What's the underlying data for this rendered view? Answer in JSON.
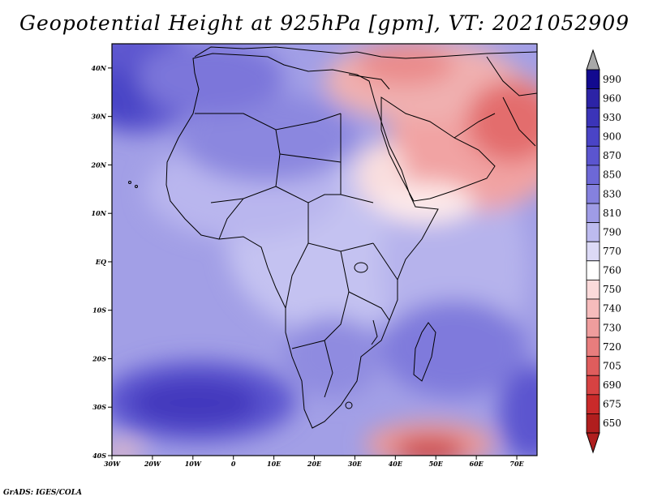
{
  "title": "Geopotential Height at 925hPa [gpm], VT: 2021052909",
  "footer": "GrADS: IGES/COLA",
  "map": {
    "lon_range": [
      -30,
      75
    ],
    "lat_range": [
      -40,
      45
    ],
    "lat_ticks": [
      {
        "value": 40,
        "label": "40N"
      },
      {
        "value": 30,
        "label": "30N"
      },
      {
        "value": 20,
        "label": "20N"
      },
      {
        "value": 10,
        "label": "10N"
      },
      {
        "value": 0,
        "label": "EQ"
      },
      {
        "value": -10,
        "label": "10S"
      },
      {
        "value": -20,
        "label": "20S"
      },
      {
        "value": -30,
        "label": "30S"
      },
      {
        "value": -40,
        "label": "40S"
      }
    ],
    "lon_ticks": [
      {
        "value": -30,
        "label": "30W"
      },
      {
        "value": -20,
        "label": "20W"
      },
      {
        "value": -10,
        "label": "10W"
      },
      {
        "value": 0,
        "label": "0"
      },
      {
        "value": 10,
        "label": "10E"
      },
      {
        "value": 20,
        "label": "20E"
      },
      {
        "value": 30,
        "label": "30E"
      },
      {
        "value": 40,
        "label": "40E"
      },
      {
        "value": 50,
        "label": "50E"
      },
      {
        "value": 60,
        "label": "60E"
      },
      {
        "value": 70,
        "label": "70E"
      }
    ]
  },
  "colorbar": {
    "levels": [
      "990",
      "960",
      "930",
      "900",
      "870",
      "850",
      "830",
      "810",
      "790",
      "770",
      "760",
      "750",
      "740",
      "730",
      "720",
      "705",
      "690",
      "675",
      "650"
    ],
    "colors": [
      "#120a8f",
      "#2c23a6",
      "#3b34b8",
      "#4a44c6",
      "#5b55cf",
      "#6d68d6",
      "#8581de",
      "#9f9ce6",
      "#bdbbef",
      "#dcdaf6",
      "#ffffff",
      "#fbdada",
      "#f6bcbc",
      "#ef9d9d",
      "#e87d7d",
      "#df5d5d",
      "#d64242",
      "#c92a2a",
      "#b01e1e"
    ],
    "over_color": "#a8a8a8",
    "under_color": "#b01e1e"
  }
}
